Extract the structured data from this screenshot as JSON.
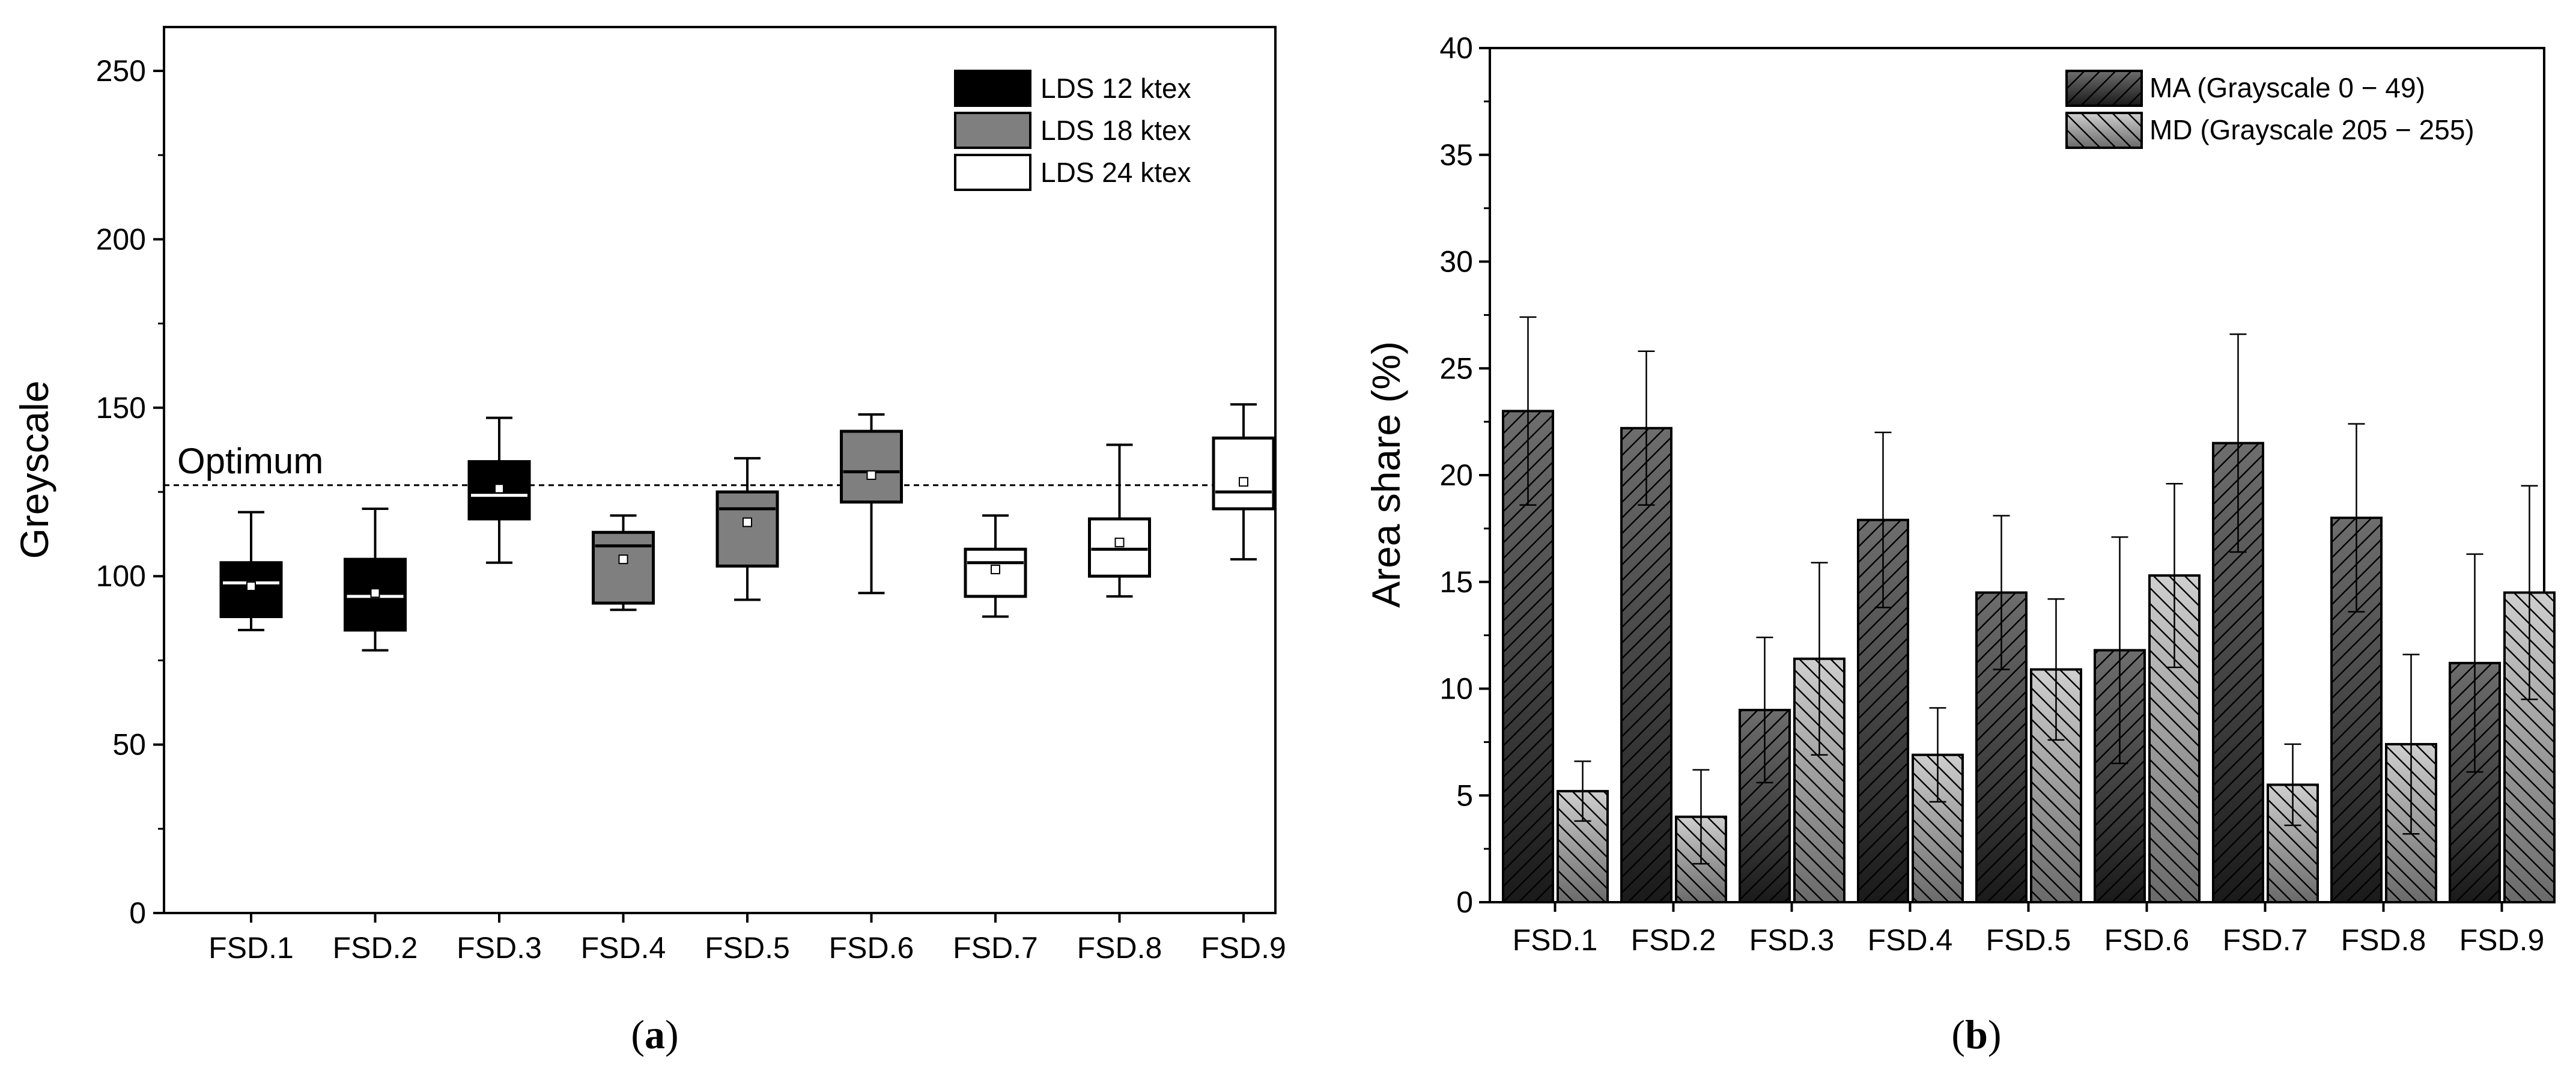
{
  "chart_data": [
    {
      "panel": "a",
      "type": "box",
      "caption_letter": "a",
      "ylabel": "Greyscale",
      "ylim": [
        0,
        260
      ],
      "yticks": [
        0,
        50,
        100,
        150,
        200,
        250
      ],
      "categories": [
        "FSD.1",
        "FSD.2",
        "FSD.3",
        "FSD.4",
        "FSD.5",
        "FSD.6",
        "FSD.7",
        "FSD.8",
        "FSD.9"
      ],
      "reference_line": {
        "label": "Optimum",
        "value": 127
      },
      "legend": [
        {
          "label": "LDS 12 ktex",
          "color": "#000000"
        },
        {
          "label": "LDS 18 ktex",
          "color": "#7f7f7f"
        },
        {
          "label": "LDS 24 ktex",
          "color": "#ffffff"
        }
      ],
      "boxes": [
        {
          "category": "FSD.1",
          "group": 0,
          "whisker_low": 84,
          "q1": 88,
          "median": 98,
          "q3": 104,
          "whisker_high": 119,
          "mean": 97
        },
        {
          "category": "FSD.2",
          "group": 0,
          "whisker_low": 78,
          "q1": 84,
          "median": 94,
          "q3": 105,
          "whisker_high": 120,
          "mean": 95
        },
        {
          "category": "FSD.3",
          "group": 0,
          "whisker_low": 104,
          "q1": 117,
          "median": 124,
          "q3": 134,
          "whisker_high": 147,
          "mean": 126
        },
        {
          "category": "FSD.4",
          "group": 1,
          "whisker_low": 90,
          "q1": 92,
          "median": 109,
          "q3": 113,
          "whisker_high": 118,
          "mean": 105
        },
        {
          "category": "FSD.5",
          "group": 1,
          "whisker_low": 93,
          "q1": 103,
          "median": 120,
          "q3": 125,
          "whisker_high": 135,
          "mean": 116
        },
        {
          "category": "FSD.6",
          "group": 1,
          "whisker_low": 95,
          "q1": 122,
          "median": 131,
          "q3": 143,
          "whisker_high": 148,
          "mean": 130
        },
        {
          "category": "FSD.7",
          "group": 2,
          "whisker_low": 88,
          "q1": 94,
          "median": 104,
          "q3": 108,
          "whisker_high": 118,
          "mean": 102
        },
        {
          "category": "FSD.8",
          "group": 2,
          "whisker_low": 94,
          "q1": 100,
          "median": 108,
          "q3": 117,
          "whisker_high": 139,
          "mean": 110
        },
        {
          "category": "FSD.9",
          "group": 2,
          "whisker_low": 105,
          "q1": 120,
          "median": 125,
          "q3": 141,
          "whisker_high": 151,
          "mean": 128
        }
      ]
    },
    {
      "panel": "b",
      "type": "bar",
      "caption_letter": "b",
      "ylabel": "Area share (%)",
      "ylim": [
        0,
        40
      ],
      "yticks": [
        0,
        5,
        10,
        15,
        20,
        25,
        30,
        35,
        40
      ],
      "categories": [
        "FSD.1",
        "FSD.2",
        "FSD.3",
        "FSD.4",
        "FSD.5",
        "FSD.6",
        "FSD.7",
        "FSD.8",
        "FSD.9"
      ],
      "series": [
        {
          "name": "MA (Grayscale 0 − 49)",
          "values": [
            23.0,
            22.2,
            9.0,
            17.9,
            14.5,
            11.8,
            21.5,
            18.0,
            11.2
          ],
          "errors": [
            4.4,
            3.6,
            3.4,
            4.1,
            3.6,
            5.3,
            5.1,
            4.4,
            5.1
          ]
        },
        {
          "name": "MD (Grayscale 205 − 255)",
          "values": [
            5.2,
            4.0,
            11.4,
            6.9,
            10.9,
            15.3,
            5.5,
            7.4,
            14.5
          ],
          "errors": [
            1.4,
            2.2,
            4.5,
            2.2,
            3.3,
            4.3,
            1.9,
            4.2,
            5.0
          ]
        }
      ]
    }
  ]
}
